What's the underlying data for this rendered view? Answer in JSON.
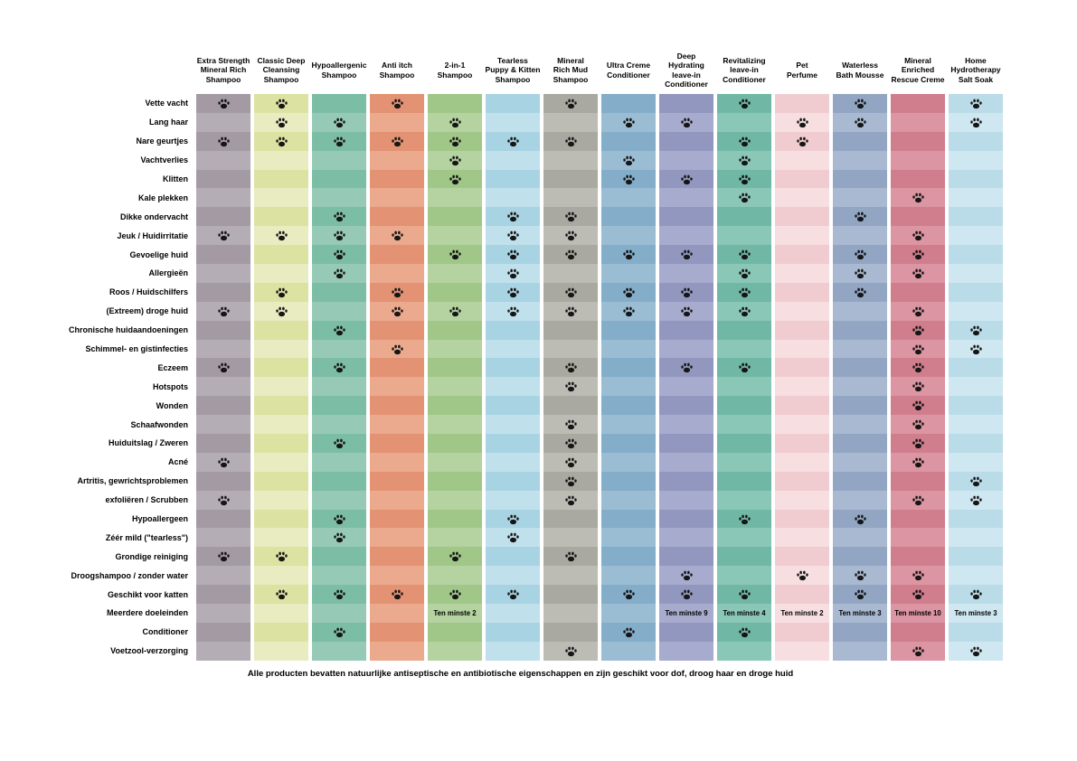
{
  "chart_data": {
    "type": "table",
    "title": "",
    "marker_icon": "paw-print-icon",
    "footnote": "Alle producten bevatten natuurlijke antiseptische en antibiotische eigenschappen en zijn geschikt voor dof, droog haar en droge huid",
    "columns": [
      {
        "label": "Extra Strength\nMineral Rich\nShampoo",
        "dark": "#a39aa3",
        "light": "#b5adb5"
      },
      {
        "label": "Classic Deep\nCleansing\nShampoo",
        "dark": "#dce2a2",
        "light": "#e8ecc0"
      },
      {
        "label": "Hypoallergenic\nShampoo",
        "dark": "#7cbda5",
        "light": "#96cab6"
      },
      {
        "label": "Anti itch\nShampoo",
        "dark": "#e39273",
        "light": "#eba98e"
      },
      {
        "label": "2-in-1\nShampoo",
        "dark": "#a0c788",
        "light": "#b4d3a0"
      },
      {
        "label": "Tearless\nPuppy & Kitten\nShampoo",
        "dark": "#a8d3e2",
        "light": "#c0e1ec"
      },
      {
        "label": "Mineral\nRich Mud\nShampoo",
        "dark": "#a9a9a1",
        "light": "#bcbcb5"
      },
      {
        "label": "Ultra Creme\nConditioner",
        "dark": "#83adc9",
        "light": "#9bbdd4"
      },
      {
        "label": "Deep\nHydrating\nleave-in\nConditioner",
        "dark": "#9297bf",
        "light": "#a7abcd"
      },
      {
        "label": "Revitalizing\nleave-in\nConditioner",
        "dark": "#70b8a5",
        "light": "#8bc7b6"
      },
      {
        "label": "Pet\nPerfume",
        "dark": "#f0ccd0",
        "light": "#f7dee1"
      },
      {
        "label": "Waterless\nBath Mousse",
        "dark": "#92a6c3",
        "light": "#a9b9d1"
      },
      {
        "label": "Mineral\nEnriched\nRescue Creme",
        "dark": "#d07e8d",
        "light": "#dc95a2"
      },
      {
        "label": "Home\nHydrotherapy\nSalt Soak",
        "dark": "#badce8",
        "light": "#cfe7f0"
      }
    ],
    "rows": [
      {
        "label": "Vette vacht",
        "cells": [
          "P",
          "P",
          "",
          "P",
          "",
          "",
          "P",
          "",
          "",
          "P",
          "",
          "P",
          "",
          "P"
        ]
      },
      {
        "label": "Lang haar",
        "cells": [
          "",
          "P",
          "P",
          "",
          "P",
          "",
          "",
          "P",
          "P",
          "",
          "P",
          "P",
          "",
          "P"
        ]
      },
      {
        "label": "Nare geurtjes",
        "cells": [
          "P",
          "P",
          "P",
          "P",
          "P",
          "P",
          "P",
          "",
          "",
          "P",
          "P",
          "",
          "",
          ""
        ]
      },
      {
        "label": "Vachtverlies",
        "cells": [
          "",
          "",
          "",
          "",
          "P",
          "",
          "",
          "P",
          "",
          "P",
          "",
          "",
          "",
          ""
        ]
      },
      {
        "label": "Klitten",
        "cells": [
          "",
          "",
          "",
          "",
          "P",
          "",
          "",
          "P",
          "P",
          "P",
          "",
          "",
          "",
          ""
        ]
      },
      {
        "label": "Kale plekken",
        "cells": [
          "",
          "",
          "",
          "",
          "",
          "",
          "",
          "",
          "",
          "P",
          "",
          "",
          "P",
          ""
        ]
      },
      {
        "label": "Dikke ondervacht",
        "cells": [
          "",
          "",
          "P",
          "",
          "",
          "P",
          "P",
          "",
          "",
          "",
          "",
          "P",
          "",
          ""
        ]
      },
      {
        "label": "Jeuk / Huidirritatie",
        "cells": [
          "P",
          "P",
          "P",
          "P",
          "",
          "P",
          "P",
          "",
          "",
          "",
          "",
          "",
          "P",
          ""
        ]
      },
      {
        "label": "Gevoelige huid",
        "cells": [
          "",
          "",
          "P",
          "",
          "P",
          "P",
          "P",
          "P",
          "P",
          "P",
          "",
          "P",
          "P",
          ""
        ]
      },
      {
        "label": "Allergieën",
        "cells": [
          "",
          "",
          "P",
          "",
          "",
          "P",
          "",
          "",
          "",
          "P",
          "",
          "P",
          "P",
          ""
        ]
      },
      {
        "label": "Roos / Huidschilfers",
        "cells": [
          "",
          "P",
          "",
          "P",
          "",
          "P",
          "P",
          "P",
          "P",
          "P",
          "",
          "P",
          "",
          ""
        ]
      },
      {
        "label": "(Extreem) droge huid",
        "cells": [
          "P",
          "P",
          "",
          "P",
          "P",
          "P",
          "P",
          "P",
          "P",
          "P",
          "",
          "",
          "P",
          ""
        ]
      },
      {
        "label": "Chronische huidaandoeningen",
        "cells": [
          "",
          "",
          "P",
          "",
          "",
          "",
          "",
          "",
          "",
          "",
          "",
          "",
          "P",
          "P"
        ]
      },
      {
        "label": "Schimmel- en gistinfecties",
        "cells": [
          "",
          "",
          "",
          "P",
          "",
          "",
          "",
          "",
          "",
          "",
          "",
          "",
          "P",
          "P"
        ]
      },
      {
        "label": "Eczeem",
        "cells": [
          "P",
          "",
          "P",
          "",
          "",
          "",
          "P",
          "",
          "P",
          "P",
          "",
          "",
          "P",
          ""
        ]
      },
      {
        "label": "Hotspots",
        "cells": [
          "",
          "",
          "",
          "",
          "",
          "",
          "P",
          "",
          "",
          "",
          "",
          "",
          "P",
          ""
        ]
      },
      {
        "label": "Wonden",
        "cells": [
          "",
          "",
          "",
          "",
          "",
          "",
          "",
          "",
          "",
          "",
          "",
          "",
          "P",
          ""
        ]
      },
      {
        "label": "Schaafwonden",
        "cells": [
          "",
          "",
          "",
          "",
          "",
          "",
          "P",
          "",
          "",
          "",
          "",
          "",
          "P",
          ""
        ]
      },
      {
        "label": "Huiduitslag / Zweren",
        "cells": [
          "",
          "",
          "P",
          "",
          "",
          "",
          "P",
          "",
          "",
          "",
          "",
          "",
          "P",
          ""
        ]
      },
      {
        "label": "Acné",
        "cells": [
          "P",
          "",
          "",
          "",
          "",
          "",
          "P",
          "",
          "",
          "",
          "",
          "",
          "P",
          ""
        ]
      },
      {
        "label": "Artritis, gewrichtsproblemen",
        "cells": [
          "",
          "",
          "",
          "",
          "",
          "",
          "P",
          "",
          "",
          "",
          "",
          "",
          "",
          "P"
        ]
      },
      {
        "label": "exfoliëren / Scrubben",
        "cells": [
          "P",
          "",
          "",
          "",
          "",
          "",
          "P",
          "",
          "",
          "",
          "",
          "",
          "P",
          "P"
        ]
      },
      {
        "label": "Hypoallergeen",
        "cells": [
          "",
          "",
          "P",
          "",
          "",
          "P",
          "",
          "",
          "",
          "P",
          "",
          "P",
          "",
          ""
        ]
      },
      {
        "label": "Zéér mild (\"tearless\")",
        "cells": [
          "",
          "",
          "P",
          "",
          "",
          "P",
          "",
          "",
          "",
          "",
          "",
          "",
          "",
          ""
        ]
      },
      {
        "label": "Grondige reiniging",
        "cells": [
          "P",
          "P",
          "",
          "",
          "P",
          "",
          "P",
          "",
          "",
          "",
          "",
          "",
          "",
          ""
        ]
      },
      {
        "label": "Droogshampoo / zonder water",
        "cells": [
          "",
          "",
          "",
          "",
          "",
          "",
          "",
          "",
          "P",
          "",
          "P",
          "P",
          "P",
          ""
        ]
      },
      {
        "label": "Geschikt voor katten",
        "cells": [
          "",
          "P",
          "P",
          "P",
          "P",
          "P",
          "",
          "P",
          "P",
          "P",
          "",
          "P",
          "P",
          "P"
        ]
      },
      {
        "label": "Meerdere doeleinden",
        "cells": [
          "",
          "",
          "",
          "",
          "Ten minste 2",
          "",
          "",
          "",
          "Ten minste 9",
          "Ten minste 4",
          "Ten minste 2",
          "Ten minste 3",
          "Ten minste 10",
          "Ten minste 3"
        ]
      },
      {
        "label": "Conditioner",
        "cells": [
          "",
          "",
          "P",
          "",
          "",
          "",
          "",
          "P",
          "",
          "P",
          "",
          "",
          "",
          ""
        ]
      },
      {
        "label": "Voetzool-verzorging",
        "cells": [
          "",
          "",
          "",
          "",
          "",
          "",
          "P",
          "",
          "",
          "",
          "",
          "",
          "P",
          "P"
        ]
      }
    ]
  }
}
